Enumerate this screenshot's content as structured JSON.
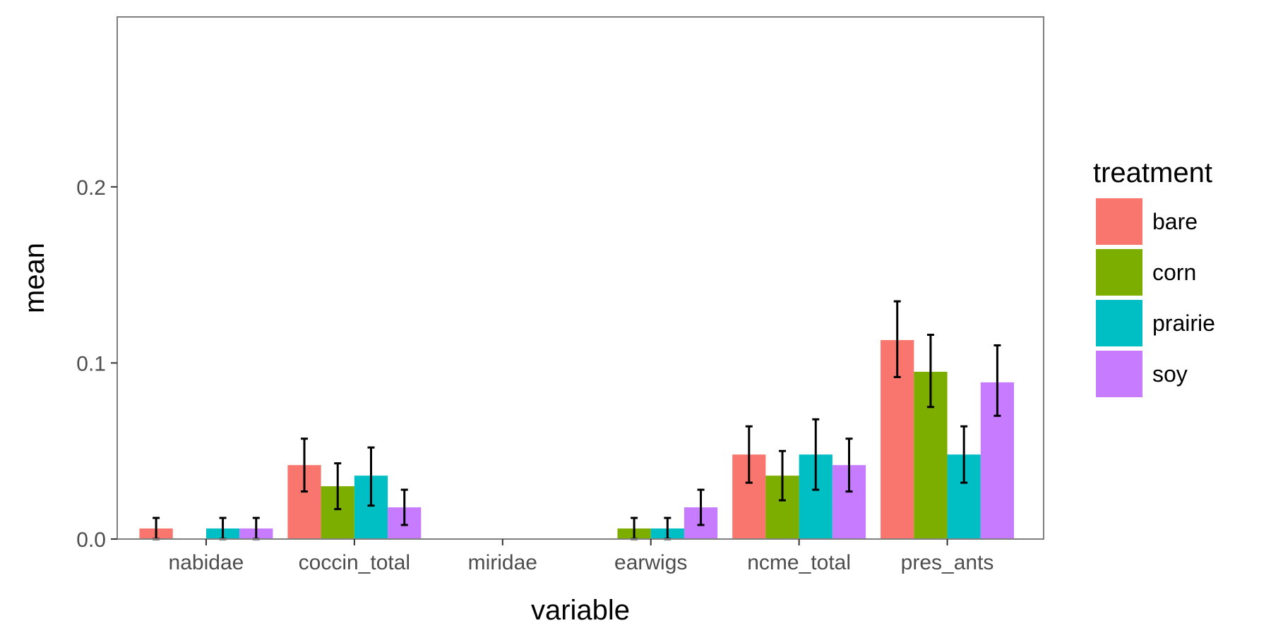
{
  "chart_data": {
    "type": "bar",
    "xlabel": "variable",
    "ylabel": "mean",
    "ylim": [
      0,
      0.2965
    ],
    "yticks": [
      0.0,
      0.1,
      0.2
    ],
    "ytick_labels": [
      "0.0",
      "0.1",
      "0.2"
    ],
    "grid": false,
    "legend_title": "treatment",
    "legend_position": "right",
    "categories": [
      "nabidae",
      "coccin_total",
      "miridae",
      "earwigs",
      "ncme_total",
      "pres_ants"
    ],
    "series": [
      {
        "name": "bare",
        "color": "#F8766D",
        "values": [
          0.006,
          0.042,
          0,
          0,
          0.048,
          0.113
        ],
        "err_low": [
          0,
          0.027,
          null,
          null,
          0.032,
          0.092
        ],
        "err_high": [
          0.012,
          0.057,
          null,
          null,
          0.064,
          0.135
        ]
      },
      {
        "name": "corn",
        "color": "#7CAE00",
        "values": [
          0,
          0.03,
          0,
          0.006,
          0.036,
          0.095
        ],
        "err_low": [
          null,
          0.017,
          null,
          0,
          0.022,
          0.075
        ],
        "err_high": [
          null,
          0.043,
          null,
          0.012,
          0.05,
          0.116
        ]
      },
      {
        "name": "prairie",
        "color": "#00BFC4",
        "values": [
          0.006,
          0.036,
          0,
          0.006,
          0.048,
          0.048
        ],
        "err_low": [
          0,
          0.019,
          null,
          0,
          0.028,
          0.032
        ],
        "err_high": [
          0.012,
          0.052,
          null,
          0.012,
          0.068,
          0.064
        ]
      },
      {
        "name": "soy",
        "color": "#C77CFF",
        "values": [
          0.006,
          0.018,
          0,
          0.018,
          0.042,
          0.089
        ],
        "err_low": [
          0,
          0.008,
          null,
          0.008,
          0.027,
          0.07
        ],
        "err_high": [
          0.012,
          0.028,
          null,
          0.028,
          0.057,
          0.11
        ]
      }
    ]
  }
}
